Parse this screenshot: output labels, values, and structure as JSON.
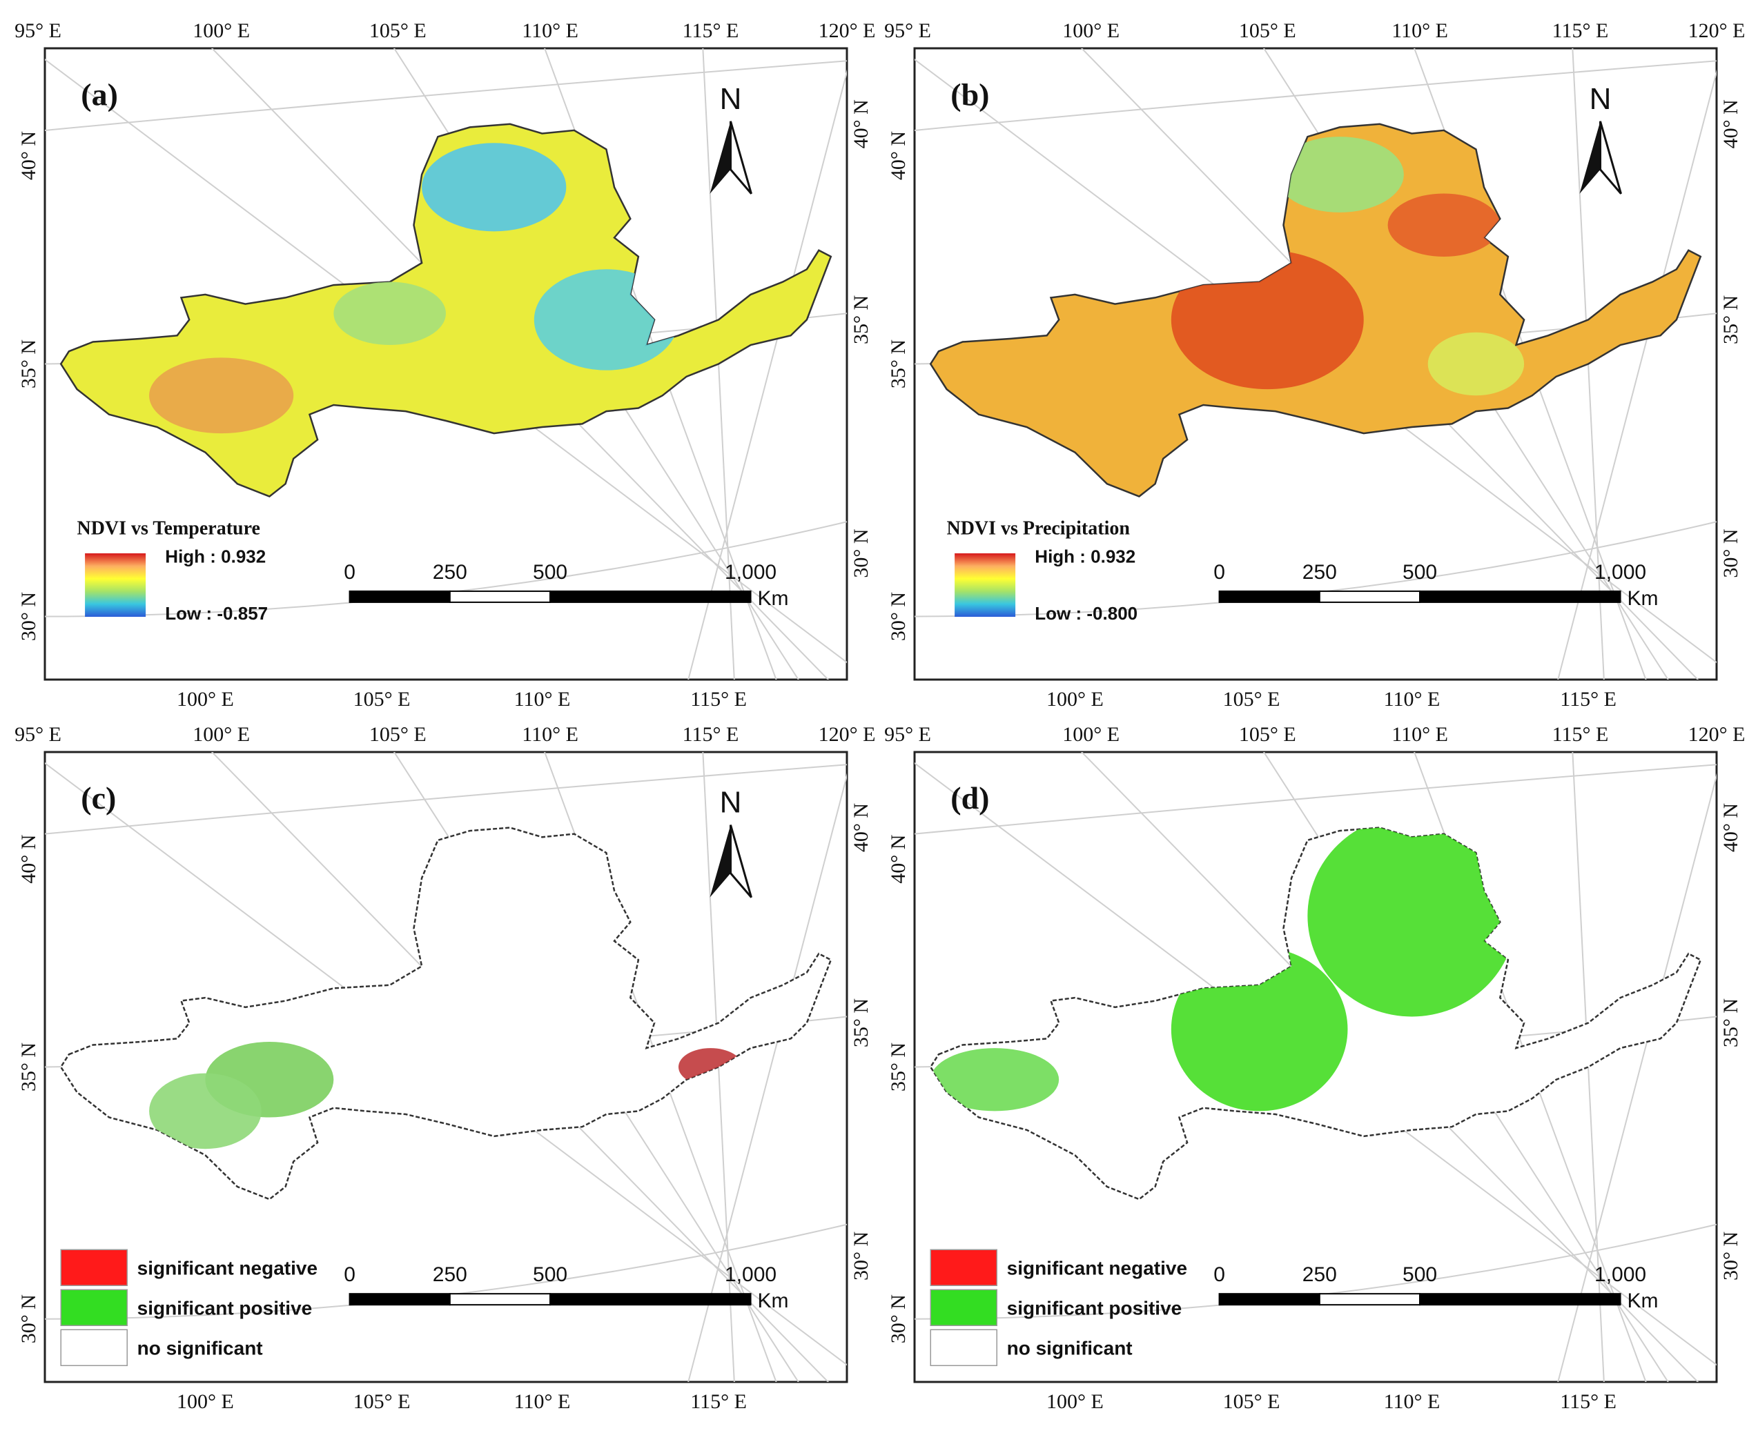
{
  "panels": [
    {
      "id": "a",
      "label": "(a)",
      "kind": "continuous",
      "legend_title": "NDVI vs Temperature",
      "legend_high": "High : 0.932",
      "legend_low": "Low : -0.857",
      "show_north": true,
      "gradient": [
        "#d7191c",
        "#fdae61",
        "#ffff33",
        "#a6e368",
        "#39c6e0",
        "#2b5bd7"
      ],
      "region_color": "#e9ec3c",
      "patches": [
        {
          "color": "#5fd0d8",
          "note": "central-east"
        },
        {
          "color": "#55c6e6",
          "note": "north"
        },
        {
          "color": "#e9a44a",
          "note": "west"
        },
        {
          "color": "#a6e07a",
          "note": "middle"
        }
      ]
    },
    {
      "id": "b",
      "label": "(b)",
      "kind": "continuous",
      "legend_title": "NDVI vs Precipitation",
      "legend_high": "High : 0.932",
      "legend_low": "Low : -0.800",
      "show_north": true,
      "gradient": [
        "#d7191c",
        "#fdae61",
        "#ffff33",
        "#a6e368",
        "#39c6e0",
        "#2b5bd7"
      ],
      "region_color": "#f0b23a",
      "patches": [
        {
          "color": "#e0501f",
          "note": "center-west"
        },
        {
          "color": "#9fe07d",
          "note": "north"
        },
        {
          "color": "#d9e85a",
          "note": "south-east"
        },
        {
          "color": "#e4602a",
          "note": "north-east"
        }
      ]
    },
    {
      "id": "c",
      "label": "(c)",
      "kind": "categorical",
      "show_north": true,
      "legend_items": [
        {
          "label": "significant negative",
          "color": "#ff1a1a"
        },
        {
          "label": "significant positive",
          "color": "#33dd22"
        },
        {
          "label": "no significant",
          "color": "#ffffff"
        }
      ],
      "region_color": "#ffffff",
      "patches": [
        {
          "color": "#7ccf5f",
          "note": "west"
        },
        {
          "color": "#8fd878",
          "note": "south-west"
        },
        {
          "color": "#c0393b",
          "note": "east"
        }
      ]
    },
    {
      "id": "d",
      "label": "(d)",
      "kind": "categorical",
      "show_north": false,
      "legend_items": [
        {
          "label": "significant negative",
          "color": "#ff1a1a"
        },
        {
          "label": "significant positive",
          "color": "#33dd22"
        },
        {
          "label": "no significant",
          "color": "#ffffff"
        }
      ],
      "region_color": "#ffffff",
      "patches": [
        {
          "color": "#44dd22",
          "note": "north"
        },
        {
          "color": "#44dd22",
          "note": "center-west"
        },
        {
          "color": "#6fdc55",
          "note": "west"
        }
      ]
    }
  ],
  "graticule": {
    "lon_top": [
      "95° E",
      "100° E",
      "105° E",
      "110° E",
      "115° E",
      "120° E"
    ],
    "lon_bottom": [
      "100° E",
      "105° E",
      "110° E",
      "115° E"
    ],
    "lat": [
      "40° N",
      "35° N",
      "30° N"
    ]
  },
  "scale_bar": {
    "ticks": [
      "0",
      "250",
      "500",
      "1,000"
    ],
    "unit": "Km"
  },
  "north_label": "N"
}
